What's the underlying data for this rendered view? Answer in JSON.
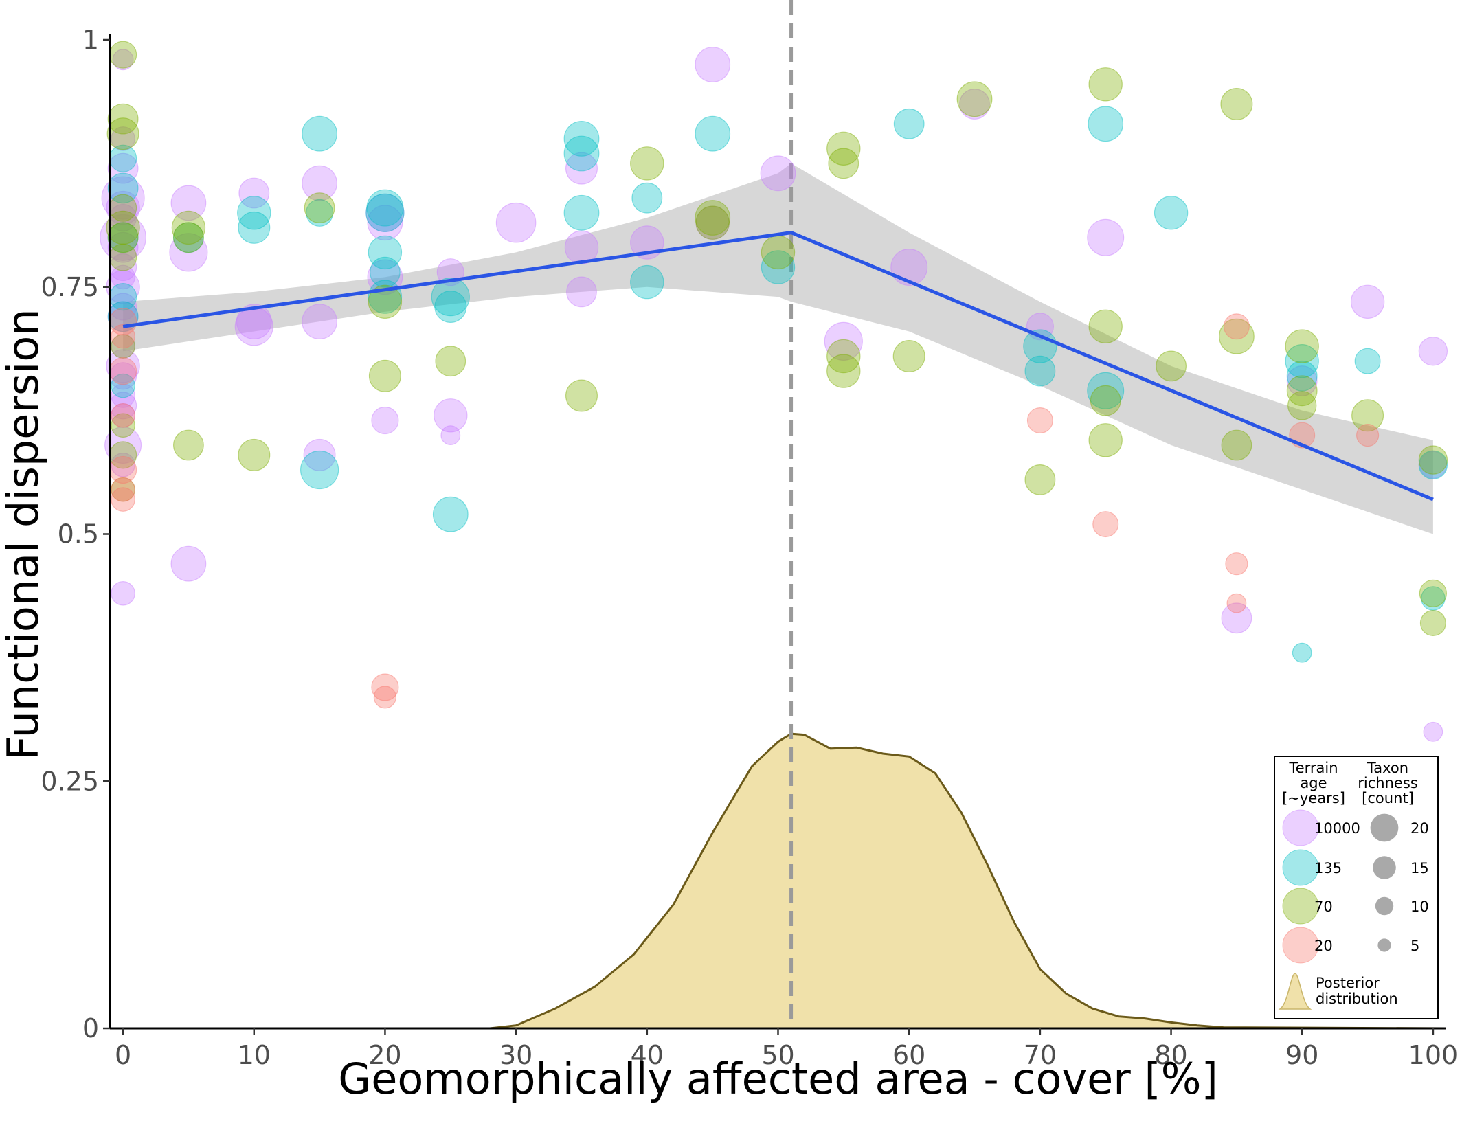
{
  "chart_data": {
    "type": "scatter",
    "title": "",
    "xlabel": "Geomorphically affected area - cover [%]",
    "ylabel": "Functional dispersion",
    "xlim": [
      -1,
      101
    ],
    "ylim": [
      0,
      1
    ],
    "x_ticks": [
      0,
      10,
      20,
      30,
      40,
      50,
      60,
      70,
      80,
      90,
      100
    ],
    "x_tick_labels": [
      "0",
      "10",
      "20",
      "30",
      "40",
      "50",
      "60",
      "70",
      "80",
      "90",
      "100"
    ],
    "y_ticks": [
      0,
      0.25,
      0.5,
      0.75,
      1
    ],
    "y_tick_labels": [
      "0",
      "0.25",
      "0.5",
      "0.75",
      "1"
    ],
    "grid": false,
    "threshold_x": 51,
    "colors": {
      "10000": "#c77cff",
      "135": "#00bfc4",
      "70": "#7cae00",
      "20": "#f8766d",
      "fit_line": "#2a55e5",
      "ribbon": "#bfbfbf",
      "posterior_fill": "#f0e1aa",
      "posterior_line": "#6b5a1a",
      "threshold_line": "#9a9a9a"
    },
    "fit_line": {
      "x": [
        0,
        51,
        100
      ],
      "y": [
        0.71,
        0.805,
        0.535
      ]
    },
    "confidence_band": {
      "x": [
        0,
        10,
        20,
        30,
        40,
        50,
        51,
        60,
        70,
        80,
        90,
        100
      ],
      "upper": [
        0.735,
        0.745,
        0.76,
        0.785,
        0.82,
        0.865,
        0.875,
        0.805,
        0.735,
        0.67,
        0.625,
        0.595
      ],
      "lower": [
        0.685,
        0.705,
        0.725,
        0.74,
        0.75,
        0.74,
        0.735,
        0.705,
        0.65,
        0.59,
        0.545,
        0.5
      ]
    },
    "posterior": {
      "label": "Posterior distribution",
      "x": [
        -1,
        28,
        30,
        33,
        36,
        39,
        42,
        45,
        48,
        50,
        51,
        52,
        54,
        56,
        58,
        60,
        62,
        64,
        66,
        68,
        70,
        72,
        74,
        76,
        78,
        80,
        82,
        84,
        101
      ],
      "density": [
        0,
        0,
        0.003,
        0.02,
        0.042,
        0.075,
        0.125,
        0.198,
        0.265,
        0.29,
        0.298,
        0.297,
        0.283,
        0.284,
        0.278,
        0.275,
        0.258,
        0.218,
        0.165,
        0.108,
        0.06,
        0.035,
        0.02,
        0.012,
        0.01,
        0.006,
        0.003,
        0.001,
        0
      ]
    },
    "series": [
      {
        "name": "10000",
        "points": [
          [
            0,
            0.98,
            6
          ],
          [
            0,
            0.9,
            8
          ],
          [
            0,
            0.87,
            12
          ],
          [
            0,
            0.84,
            20
          ],
          [
            0,
            0.83,
            14
          ],
          [
            0,
            0.82,
            10
          ],
          [
            0,
            0.8,
            22
          ],
          [
            0,
            0.79,
            12
          ],
          [
            0,
            0.77,
            10
          ],
          [
            0,
            0.76,
            8
          ],
          [
            0,
            0.75,
            14
          ],
          [
            0,
            0.73,
            10
          ],
          [
            0,
            0.72,
            12
          ],
          [
            0,
            0.69,
            8
          ],
          [
            0,
            0.67,
            14
          ],
          [
            0,
            0.66,
            10
          ],
          [
            0,
            0.64,
            8
          ],
          [
            0,
            0.63,
            10
          ],
          [
            0,
            0.62,
            8
          ],
          [
            0,
            0.59,
            16
          ],
          [
            0,
            0.57,
            8
          ],
          [
            0,
            0.44,
            8
          ],
          [
            5,
            0.835,
            15
          ],
          [
            5,
            0.785,
            17
          ],
          [
            5,
            0.47,
            15
          ],
          [
            10,
            0.845,
            12
          ],
          [
            10,
            0.715,
            15
          ],
          [
            10,
            0.71,
            17
          ],
          [
            15,
            0.855,
            15
          ],
          [
            15,
            0.715,
            15
          ],
          [
            15,
            0.58,
            13
          ],
          [
            20,
            0.825,
            17
          ],
          [
            20,
            0.815,
            15
          ],
          [
            20,
            0.76,
            15
          ],
          [
            20,
            0.615,
            10
          ],
          [
            25,
            0.765,
            10
          ],
          [
            25,
            0.62,
            14
          ],
          [
            25,
            0.6,
            5
          ],
          [
            30,
            0.815,
            18
          ],
          [
            35,
            0.87,
            13
          ],
          [
            35,
            0.79,
            14
          ],
          [
            35,
            0.745,
            12
          ],
          [
            40,
            0.795,
            14
          ],
          [
            45,
            0.975,
            15
          ],
          [
            45,
            0.815,
            14
          ],
          [
            50,
            0.865,
            15
          ],
          [
            55,
            0.695,
            17
          ],
          [
            60,
            0.77,
            16
          ],
          [
            65,
            0.935,
            12
          ],
          [
            70,
            0.71,
            10
          ],
          [
            75,
            0.8,
            16
          ],
          [
            85,
            0.415,
            12
          ],
          [
            90,
            0.655,
            12
          ],
          [
            95,
            0.735,
            14
          ],
          [
            100,
            0.685,
            11
          ],
          [
            100,
            0.57,
            10
          ],
          [
            100,
            0.3,
            5
          ]
        ]
      },
      {
        "name": "135",
        "points": [
          [
            0,
            0.88,
            10
          ],
          [
            0,
            0.85,
            12
          ],
          [
            0,
            0.8,
            12
          ],
          [
            0,
            0.74,
            10
          ],
          [
            0,
            0.72,
            12
          ],
          [
            0,
            0.65,
            8
          ],
          [
            5,
            0.8,
            12
          ],
          [
            10,
            0.825,
            14
          ],
          [
            10,
            0.81,
            13
          ],
          [
            15,
            0.905,
            15
          ],
          [
            15,
            0.825,
            10
          ],
          [
            15,
            0.565,
            17
          ],
          [
            20,
            0.83,
            16
          ],
          [
            20,
            0.825,
            17
          ],
          [
            20,
            0.785,
            14
          ],
          [
            20,
            0.765,
            12
          ],
          [
            20,
            0.74,
            14
          ],
          [
            25,
            0.74,
            17
          ],
          [
            25,
            0.73,
            13
          ],
          [
            25,
            0.52,
            15
          ],
          [
            35,
            0.9,
            15
          ],
          [
            35,
            0.885,
            15
          ],
          [
            35,
            0.825,
            15
          ],
          [
            40,
            0.84,
            12
          ],
          [
            40,
            0.755,
            14
          ],
          [
            45,
            0.905,
            15
          ],
          [
            50,
            0.77,
            14
          ],
          [
            60,
            0.915,
            12
          ],
          [
            70,
            0.69,
            14
          ],
          [
            70,
            0.665,
            12
          ],
          [
            75,
            0.915,
            15
          ],
          [
            75,
            0.645,
            16
          ],
          [
            80,
            0.825,
            14
          ],
          [
            90,
            0.675,
            14
          ],
          [
            90,
            0.66,
            12
          ],
          [
            90,
            0.38,
            5
          ],
          [
            95,
            0.675,
            9
          ],
          [
            100,
            0.57,
            11
          ],
          [
            100,
            0.435,
            8
          ]
        ]
      },
      {
        "name": "70",
        "points": [
          [
            0,
            0.985,
            10
          ],
          [
            0,
            0.92,
            12
          ],
          [
            0,
            0.905,
            13
          ],
          [
            0,
            0.83,
            10
          ],
          [
            0,
            0.81,
            14
          ],
          [
            0,
            0.8,
            12
          ],
          [
            0,
            0.78,
            10
          ],
          [
            0,
            0.69,
            8
          ],
          [
            0,
            0.61,
            8
          ],
          [
            0,
            0.58,
            10
          ],
          [
            0,
            0.545,
            8
          ],
          [
            5,
            0.81,
            14
          ],
          [
            5,
            0.8,
            12
          ],
          [
            5,
            0.59,
            12
          ],
          [
            10,
            0.58,
            13
          ],
          [
            15,
            0.83,
            12
          ],
          [
            20,
            0.735,
            14
          ],
          [
            20,
            0.66,
            13
          ],
          [
            25,
            0.675,
            12
          ],
          [
            35,
            0.64,
            13
          ],
          [
            40,
            0.875,
            14
          ],
          [
            45,
            0.82,
            15
          ],
          [
            45,
            0.815,
            14
          ],
          [
            50,
            0.785,
            14
          ],
          [
            55,
            0.89,
            14
          ],
          [
            55,
            0.875,
            12
          ],
          [
            55,
            0.68,
            14
          ],
          [
            55,
            0.665,
            14
          ],
          [
            60,
            0.68,
            13
          ],
          [
            65,
            0.94,
            15
          ],
          [
            70,
            0.555,
            12
          ],
          [
            75,
            0.955,
            14
          ],
          [
            75,
            0.71,
            14
          ],
          [
            75,
            0.635,
            12
          ],
          [
            75,
            0.595,
            14
          ],
          [
            80,
            0.67,
            12
          ],
          [
            85,
            0.935,
            13
          ],
          [
            85,
            0.7,
            15
          ],
          [
            85,
            0.59,
            12
          ],
          [
            90,
            0.69,
            14
          ],
          [
            90,
            0.645,
            12
          ],
          [
            90,
            0.63,
            11
          ],
          [
            95,
            0.62,
            13
          ],
          [
            100,
            0.575,
            11
          ],
          [
            100,
            0.44,
            10
          ],
          [
            100,
            0.41,
            9
          ]
        ]
      },
      {
        "name": "20",
        "points": [
          [
            0,
            0.715,
            10
          ],
          [
            0,
            0.7,
            8
          ],
          [
            0,
            0.665,
            10
          ],
          [
            0,
            0.62,
            8
          ],
          [
            0,
            0.565,
            10
          ],
          [
            0,
            0.545,
            8
          ],
          [
            0,
            0.535,
            8
          ],
          [
            20,
            0.345,
            10
          ],
          [
            20,
            0.335,
            7
          ],
          [
            70,
            0.615,
            9
          ],
          [
            75,
            0.51,
            9
          ],
          [
            85,
            0.71,
            9
          ],
          [
            85,
            0.47,
            7
          ],
          [
            85,
            0.43,
            5
          ],
          [
            90,
            0.6,
            9
          ],
          [
            95,
            0.6,
            7
          ]
        ]
      }
    ],
    "legend": {
      "position": "bottom-right",
      "age_title": [
        "Terrain",
        "age",
        "[~years]"
      ],
      "richness_title": [
        "Taxon",
        "richness",
        "[count]"
      ],
      "age_entries": [
        "10000",
        "135",
        "70",
        "20"
      ],
      "richness_entries": [
        {
          "label": "20",
          "value": 20
        },
        {
          "label": "15",
          "value": 15
        },
        {
          "label": "10",
          "value": 10
        },
        {
          "label": "5",
          "value": 5
        }
      ],
      "posterior_label": [
        "Posterior",
        "distribution"
      ]
    }
  }
}
